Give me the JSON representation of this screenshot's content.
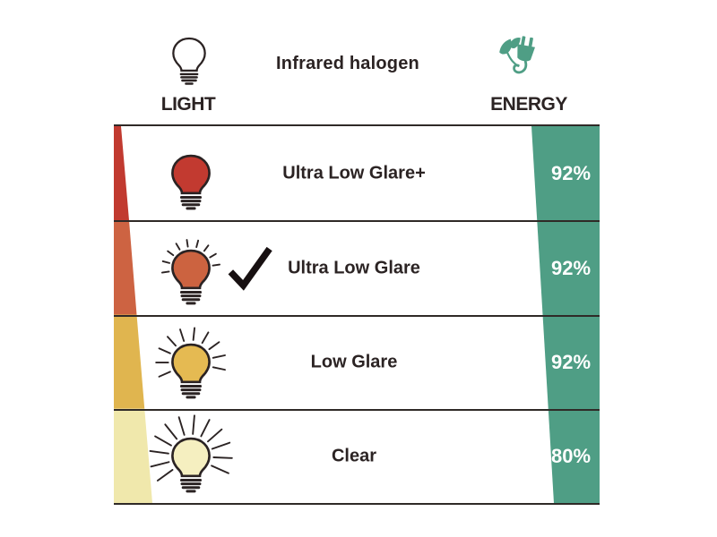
{
  "header": {
    "title": "Infrared halogen",
    "light_column": "LIGHT",
    "energy_column": "ENERGY"
  },
  "rows": [
    {
      "label": "Ultra Low Glare+",
      "energy": "92%",
      "selected": false
    },
    {
      "label": "Ultra Low Glare",
      "energy": "92%",
      "selected": true
    },
    {
      "label": "Low Glare",
      "energy": "92%",
      "selected": false
    },
    {
      "label": "Clear",
      "energy": "80%",
      "selected": false
    }
  ],
  "colors": {
    "teal": "#4f9e85",
    "ink": "#2b2323",
    "row_line": "#2f2a27",
    "percent_text": "#ffffff",
    "wedge": [
      "#c13a30",
      "#cd6342",
      "#e0b54f",
      "#f0e8ac"
    ],
    "bulb_fill": [
      "#c23a30",
      "#cc6340",
      "#e5ba52",
      "#f5efc0"
    ],
    "bulb_outline": "#2b2323"
  },
  "chart_data": {
    "type": "table",
    "title": "Infrared halogen",
    "columns": [
      "LIGHT",
      "ENERGY"
    ],
    "categories": [
      "Ultra Low Glare+",
      "Ultra Low Glare",
      "Low Glare",
      "Clear"
    ],
    "values_percent": [
      92,
      92,
      92,
      80
    ],
    "checked_row": "Ultra Low Glare"
  }
}
